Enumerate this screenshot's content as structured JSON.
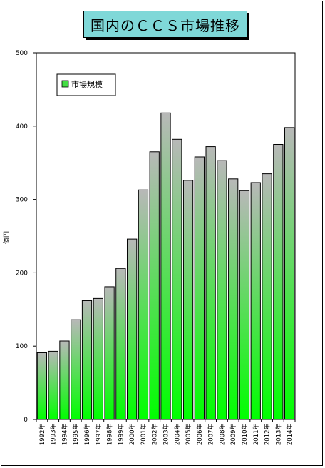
{
  "chart_data": {
    "type": "bar",
    "title": "国内のＣＣＳ市場推移",
    "ylabel": "億円",
    "xlabel": "",
    "ylim": [
      0,
      500
    ],
    "yticks": [
      0,
      100,
      200,
      300,
      400,
      500
    ],
    "grid": false,
    "legend_position": "top-left",
    "categories": [
      "1992年",
      "1993年",
      "1994年",
      "1995年",
      "1996年",
      "1997年",
      "1998年",
      "1999年",
      "2000年",
      "2001年",
      "2002年",
      "2003年",
      "2004年",
      "2005年",
      "2006年",
      "2007年",
      "2008年",
      "2009年",
      "2010年",
      "2011年",
      "2012年",
      "2013年",
      "2014年"
    ],
    "series": [
      {
        "name": "市場規模",
        "color_top": "#b8b8b8",
        "color_bottom": "#00ff00",
        "values": [
          91,
          93,
          107,
          136,
          162,
          165,
          181,
          206,
          246,
          313,
          365,
          418,
          382,
          326,
          358,
          372,
          353,
          328,
          312,
          323,
          335,
          375,
          398
        ]
      }
    ]
  }
}
